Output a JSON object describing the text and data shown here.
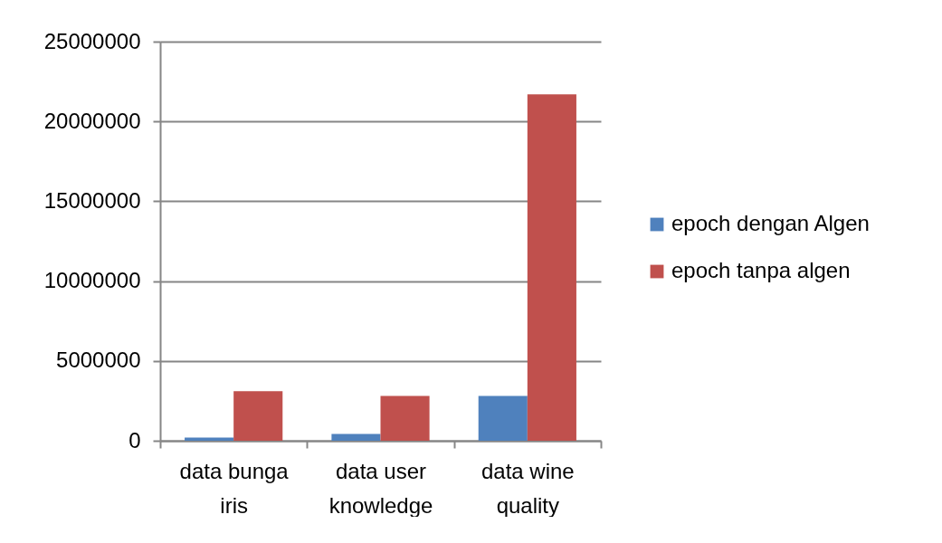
{
  "chart_data": {
    "type": "bar",
    "categories": [
      "data bunga iris",
      "data user knowledge",
      "data wine quality"
    ],
    "series": [
      {
        "name": "epoch dengan Algen",
        "color": "#4f81bd",
        "values": [
          200000,
          430000,
          2800000
        ]
      },
      {
        "name": "epoch tanpa algen",
        "color": "#c0504d",
        "values": [
          3100000,
          2800000,
          21700000
        ]
      }
    ],
    "ylim": [
      0,
      25000000
    ],
    "yticks": [
      0,
      5000000,
      10000000,
      15000000,
      20000000,
      25000000
    ],
    "grid": "y",
    "legend": "right"
  }
}
